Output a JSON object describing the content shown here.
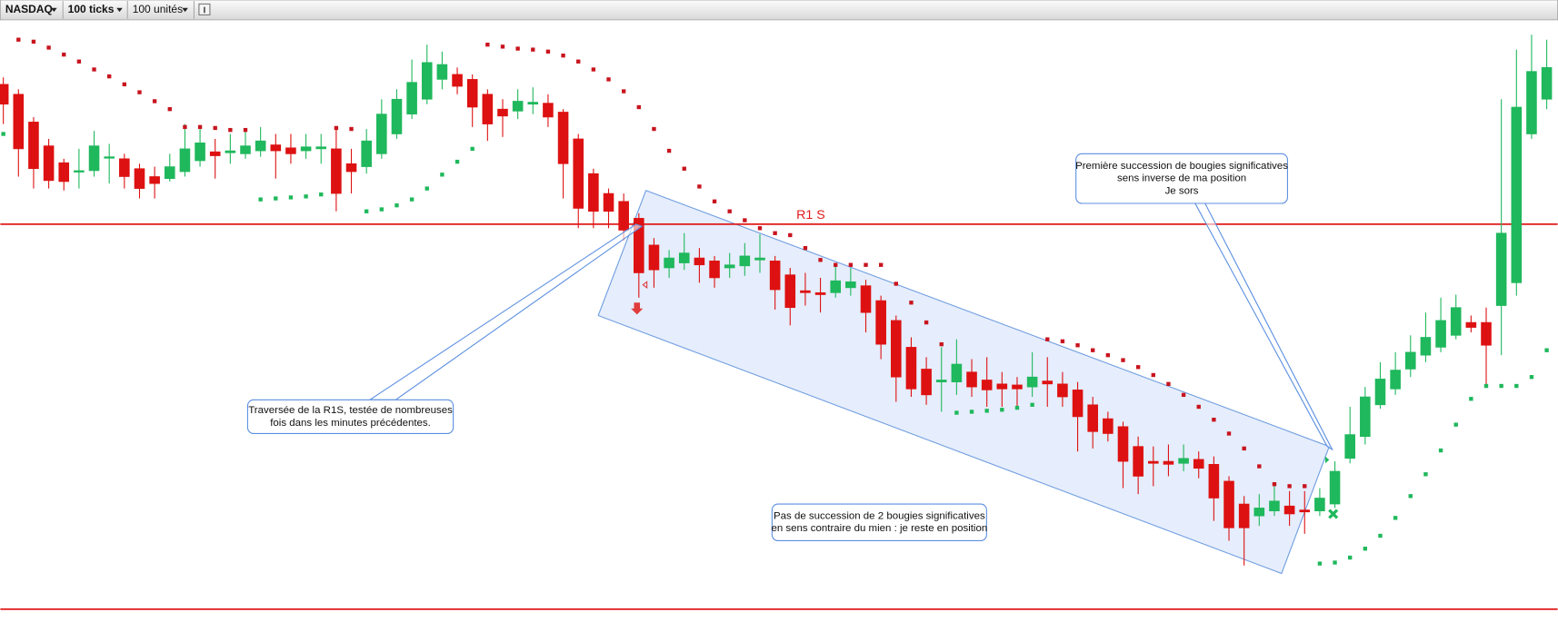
{
  "toolbar": [
    "NASDAQ",
    "100 ticks",
    "100 unités"
  ],
  "chart_data": {
    "type": "candlestick",
    "ylim": [
      63,
      680
    ],
    "up_color": "#1fb85c",
    "down_color": "#dd1111",
    "open": [
      615,
      605,
      577,
      553,
      536,
      527,
      528,
      541,
      540,
      530,
      522,
      520,
      527,
      538,
      547,
      546,
      545,
      548,
      554,
      551,
      548,
      550,
      550,
      535,
      532,
      545,
      565,
      585,
      600,
      620,
      625,
      620,
      605,
      590,
      588,
      595,
      596,
      587,
      560,
      525,
      505,
      497,
      480,
      453,
      430,
      435,
      440,
      437,
      430,
      432,
      438,
      437,
      423,
      407,
      405,
      405,
      410,
      412,
      397,
      377,
      350,
      328,
      315,
      315,
      325,
      317,
      313,
      312,
      310,
      316,
      313,
      307,
      292,
      278,
      270,
      250,
      235,
      235,
      233,
      237,
      232,
      215,
      192,
      180,
      185,
      190,
      186,
      185,
      192,
      238,
      260,
      292,
      308,
      328,
      342,
      350,
      362,
      375,
      375,
      392,
      415,
      565,
      600
    ],
    "high": [
      622,
      610,
      582,
      560,
      540,
      550,
      568,
      555,
      545,
      535,
      532,
      545,
      575,
      570,
      560,
      565,
      568,
      572,
      565,
      565,
      565,
      565,
      570,
      550,
      570,
      600,
      610,
      640,
      655,
      648,
      632,
      625,
      610,
      600,
      610,
      612,
      605,
      590,
      565,
      530,
      510,
      505,
      485,
      460,
      448,
      465,
      450,
      442,
      445,
      455,
      464,
      442,
      430,
      425,
      420,
      435,
      430,
      418,
      402,
      382,
      360,
      340,
      350,
      358,
      338,
      340,
      325,
      320,
      345,
      340,
      325,
      315,
      300,
      285,
      275,
      260,
      250,
      252,
      252,
      245,
      240,
      220,
      200,
      202,
      212,
      205,
      205,
      208,
      235,
      290,
      310,
      335,
      345,
      362,
      385,
      400,
      403,
      382,
      390,
      600,
      650,
      665,
      660
    ],
    "low": [
      575,
      522,
      510,
      510,
      508,
      510,
      522,
      515,
      510,
      500,
      500,
      517,
      522,
      532,
      520,
      535,
      540,
      542,
      520,
      535,
      540,
      535,
      487,
      505,
      525,
      540,
      560,
      580,
      595,
      610,
      605,
      572,
      558,
      562,
      580,
      585,
      572,
      500,
      470,
      470,
      470,
      458,
      400,
      410,
      420,
      428,
      415,
      410,
      420,
      422,
      425,
      388,
      372,
      392,
      385,
      400,
      402,
      365,
      338,
      295,
      300,
      292,
      285,
      302,
      300,
      290,
      290,
      290,
      300,
      290,
      290,
      245,
      248,
      255,
      208,
      202,
      210,
      220,
      225,
      218,
      175,
      155,
      130,
      170,
      180,
      170,
      162,
      180,
      188,
      233,
      252,
      288,
      302,
      320,
      335,
      345,
      358,
      365,
      312,
      342,
      402,
      560,
      590
    ],
    "close": [
      595,
      550,
      530,
      518,
      517,
      528,
      553,
      542,
      522,
      510,
      515,
      532,
      550,
      556,
      543,
      548,
      553,
      558,
      548,
      545,
      552,
      552,
      505,
      527,
      558,
      585,
      600,
      617,
      637,
      635,
      613,
      592,
      575,
      583,
      598,
      597,
      582,
      535,
      490,
      487,
      487,
      468,
      425,
      428,
      440,
      445,
      433,
      420,
      433,
      442,
      440,
      408,
      390,
      405,
      403,
      417,
      416,
      385,
      353,
      320,
      308,
      302,
      317,
      333,
      310,
      307,
      308,
      308,
      320,
      313,
      300,
      280,
      265,
      263,
      235,
      220,
      233,
      232,
      238,
      228,
      198,
      168,
      168,
      188,
      195,
      182,
      184,
      198,
      225,
      262,
      300,
      318,
      327,
      345,
      360,
      377,
      390,
      370,
      352,
      465,
      592,
      628,
      632
    ],
    "sar_down": {
      "color": "#c8141e",
      "values": [
        null,
        660,
        658,
        652,
        645,
        638,
        630,
        623,
        615,
        607,
        598,
        590,
        572,
        572,
        571,
        569,
        569,
        null,
        null,
        null,
        null,
        null,
        571,
        570,
        null,
        null,
        null,
        null,
        null,
        null,
        null,
        null,
        655,
        653,
        651,
        650,
        648,
        644,
        638,
        630,
        620,
        608,
        592,
        570,
        548,
        530,
        512,
        497,
        487,
        478,
        470,
        465,
        463,
        450,
        438,
        433,
        433,
        433,
        433,
        414,
        395,
        375,
        353,
        null,
        null,
        null,
        null,
        null,
        null,
        358,
        356,
        352,
        347,
        342,
        337,
        330,
        322,
        313,
        302,
        290,
        277,
        263,
        248,
        230,
        212,
        210,
        210,
        null,
        null,
        null,
        null,
        null,
        null,
        null,
        null,
        null,
        null,
        null,
        null,
        null,
        null,
        null,
        null
      ]
    },
    "sar_up": {
      "color": "#1fb85c",
      "values": [
        565,
        null,
        null,
        null,
        null,
        null,
        null,
        null,
        null,
        null,
        null,
        null,
        null,
        null,
        null,
        null,
        null,
        499,
        500,
        501,
        502,
        504,
        null,
        null,
        487,
        489,
        493,
        499,
        510,
        524,
        537,
        550,
        null,
        null,
        null,
        null,
        null,
        null,
        null,
        null,
        null,
        null,
        null,
        null,
        null,
        null,
        null,
        null,
        null,
        null,
        null,
        null,
        null,
        null,
        null,
        null,
        null,
        null,
        null,
        null,
        null,
        null,
        null,
        284,
        285,
        286,
        287,
        289,
        292,
        null,
        null,
        null,
        null,
        null,
        null,
        null,
        null,
        null,
        null,
        null,
        null,
        null,
        null,
        null,
        null,
        null,
        null,
        132,
        133,
        138,
        147,
        160,
        178,
        200,
        222,
        246,
        272,
        298,
        311,
        311,
        311,
        320,
        347
      ]
    },
    "levels": [
      {
        "label": "R1 S",
        "value": 474,
        "color": "#e01b1b"
      },
      {
        "value": 86,
        "color": "#e01b1b"
      }
    ],
    "annotations": [
      {
        "lines": [
          "Traversée de la R1S, testée de nombreuses",
          "fois dans les minutes précédentes."
        ]
      },
      {
        "lines": [
          "Pas de succession de 2 bougies significatives",
          "en sens contraire du mien : je reste en position"
        ]
      },
      {
        "lines": [
          "Première succession de bougies significatives",
          "sens inverse de ma position",
          "Je sors"
        ]
      }
    ]
  }
}
